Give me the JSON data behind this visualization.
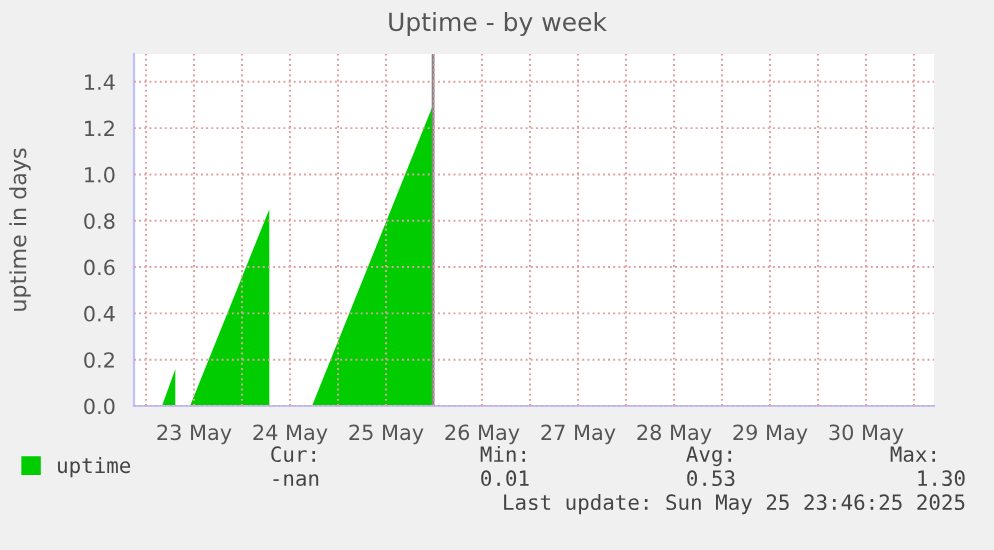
{
  "chart_data": {
    "type": "area",
    "title": "Uptime - by week",
    "ylabel": "uptime in days",
    "series": [
      {
        "name": "uptime",
        "color": "#00cc00",
        "x": [
          "2025-05-23T04:00",
          "2025-05-23T07:20",
          "2025-05-23T07:30",
          "2025-05-23T11:00",
          "2025-05-24T06:50",
          "2025-05-24T07:00",
          "2025-05-24T17:30",
          "2025-05-25T23:46"
        ],
        "values": [
          0,
          0.16,
          null,
          0,
          0.85,
          null,
          0,
          1.3
        ]
      }
    ],
    "xlim": [
      "2025-05-22T21:00",
      "2025-05-31T05:00"
    ],
    "xticks": [
      {
        "value": "2025-05-23T00:00",
        "label": null
      },
      {
        "value": "2025-05-23T12:00",
        "label": "23 May"
      },
      {
        "value": "2025-05-24T00:00",
        "label": null
      },
      {
        "value": "2025-05-24T12:00",
        "label": "24 May"
      },
      {
        "value": "2025-05-25T00:00",
        "label": null
      },
      {
        "value": "2025-05-25T12:00",
        "label": "25 May"
      },
      {
        "value": "2025-05-26T00:00",
        "label": null
      },
      {
        "value": "2025-05-26T12:00",
        "label": "26 May"
      },
      {
        "value": "2025-05-27T00:00",
        "label": null
      },
      {
        "value": "2025-05-27T12:00",
        "label": "27 May"
      },
      {
        "value": "2025-05-28T00:00",
        "label": null
      },
      {
        "value": "2025-05-28T12:00",
        "label": "28 May"
      },
      {
        "value": "2025-05-29T00:00",
        "label": null
      },
      {
        "value": "2025-05-29T12:00",
        "label": "29 May"
      },
      {
        "value": "2025-05-30T00:00",
        "label": null
      },
      {
        "value": "2025-05-30T12:00",
        "label": "30 May"
      },
      {
        "value": "2025-05-31T00:00",
        "label": null
      }
    ],
    "ylim": [
      0,
      1.52
    ],
    "yticks": [
      {
        "value": 0,
        "label": "0.0"
      },
      {
        "value": 0.2,
        "label": "0.2"
      },
      {
        "value": 0.4,
        "label": "0.4"
      },
      {
        "value": 0.6,
        "label": "0.6"
      },
      {
        "value": 0.8,
        "label": "0.8"
      },
      {
        "value": 1.0,
        "label": "1.0"
      },
      {
        "value": 1.2,
        "label": "1.2"
      },
      {
        "value": 1.4,
        "label": "1.4"
      }
    ],
    "ref_lines": [
      {
        "axis": "x",
        "value": "2025-05-25T23:46",
        "color": "#888888"
      }
    ],
    "grid": true,
    "legend": "bottom",
    "annotations": [
      "Cur:",
      "Min:",
      "Avg:",
      "Max:",
      "-nan",
      "0.01",
      "0.53",
      "1.30",
      "Last update: Sun May 25 23:46:25 2025"
    ]
  }
}
